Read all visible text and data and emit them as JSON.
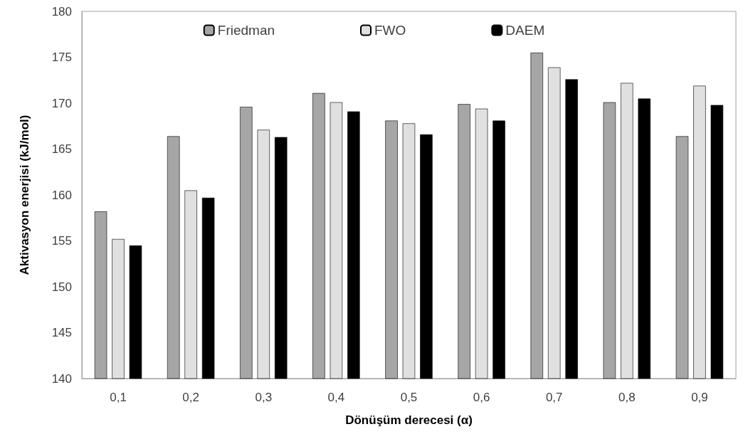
{
  "chart_data": {
    "type": "bar",
    "xlabel": "Dönüşüm derecesi (α)",
    "ylabel": "Aktivasyon enerjisi (kJ/mol)",
    "categories": [
      "0,1",
      "0,2",
      "0,3",
      "0,4",
      "0,5",
      "0,6",
      "0,7",
      "0,8",
      "0,9"
    ],
    "series": [
      {
        "name": "Friedman",
        "color": "#a6a6a6",
        "values": [
          158.2,
          166.4,
          169.6,
          171.1,
          168.1,
          169.9,
          175.5,
          170.1,
          166.4
        ]
      },
      {
        "name": "FWO",
        "color": "#e0e0e0",
        "values": [
          155.2,
          160.5,
          167.1,
          170.1,
          167.8,
          169.4,
          173.9,
          172.2,
          171.9
        ]
      },
      {
        "name": "DAEM",
        "color": "#000000",
        "values": [
          154.5,
          159.7,
          166.3,
          169.1,
          166.6,
          168.1,
          172.6,
          170.5,
          169.8
        ]
      }
    ],
    "ylim": [
      140,
      180
    ],
    "yticks": [
      140,
      145,
      150,
      155,
      160,
      165,
      170,
      175,
      180
    ],
    "grid": false,
    "legend": "top"
  }
}
